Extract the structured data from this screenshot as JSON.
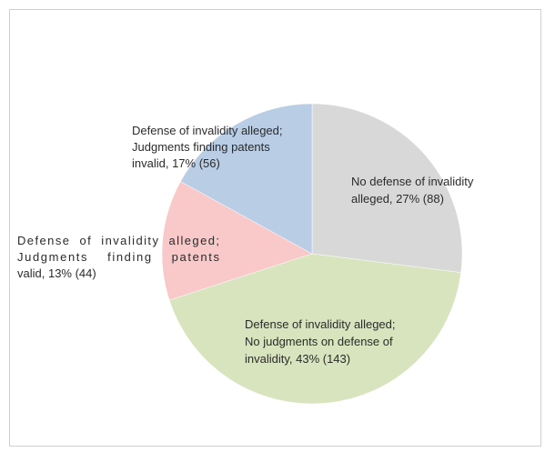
{
  "chart_data": {
    "type": "pie",
    "title": "",
    "slices": [
      {
        "name": "No defense of invalidity alleged",
        "percent": 27,
        "count": 88,
        "color": "#d8d8d8",
        "label_lines": [
          "No defense of invalidity",
          "alleged, 27% (88)"
        ]
      },
      {
        "name": "Defense of invalidity alleged; No judgments on defense of invalidity",
        "percent": 43,
        "count": 143,
        "color": "#d7e4bd",
        "label_lines": [
          "Defense of invalidity alleged;",
          "No judgments on defense of",
          "invalidity, 43% (143)"
        ]
      },
      {
        "name": "Defense of invalidity alleged; Judgments finding patents valid",
        "percent": 13,
        "count": 44,
        "color": "#f9c9c9",
        "label_lines": [
          "Defense  of  invalidity  alleged;",
          "Judgments    finding    patents",
          "valid, 13% (44)"
        ]
      },
      {
        "name": "Defense of invalidity alleged; Judgments finding patents invalid",
        "percent": 17,
        "count": 56,
        "color": "#b9cde5",
        "label_lines": [
          "Defense of invalidity alleged;",
          "Judgments finding patents",
          "invalid, 17% (56)"
        ]
      }
    ],
    "start_angle_deg": 0,
    "direction": "clockwise",
    "legend": "none",
    "border_color": "#cfcfcf"
  }
}
